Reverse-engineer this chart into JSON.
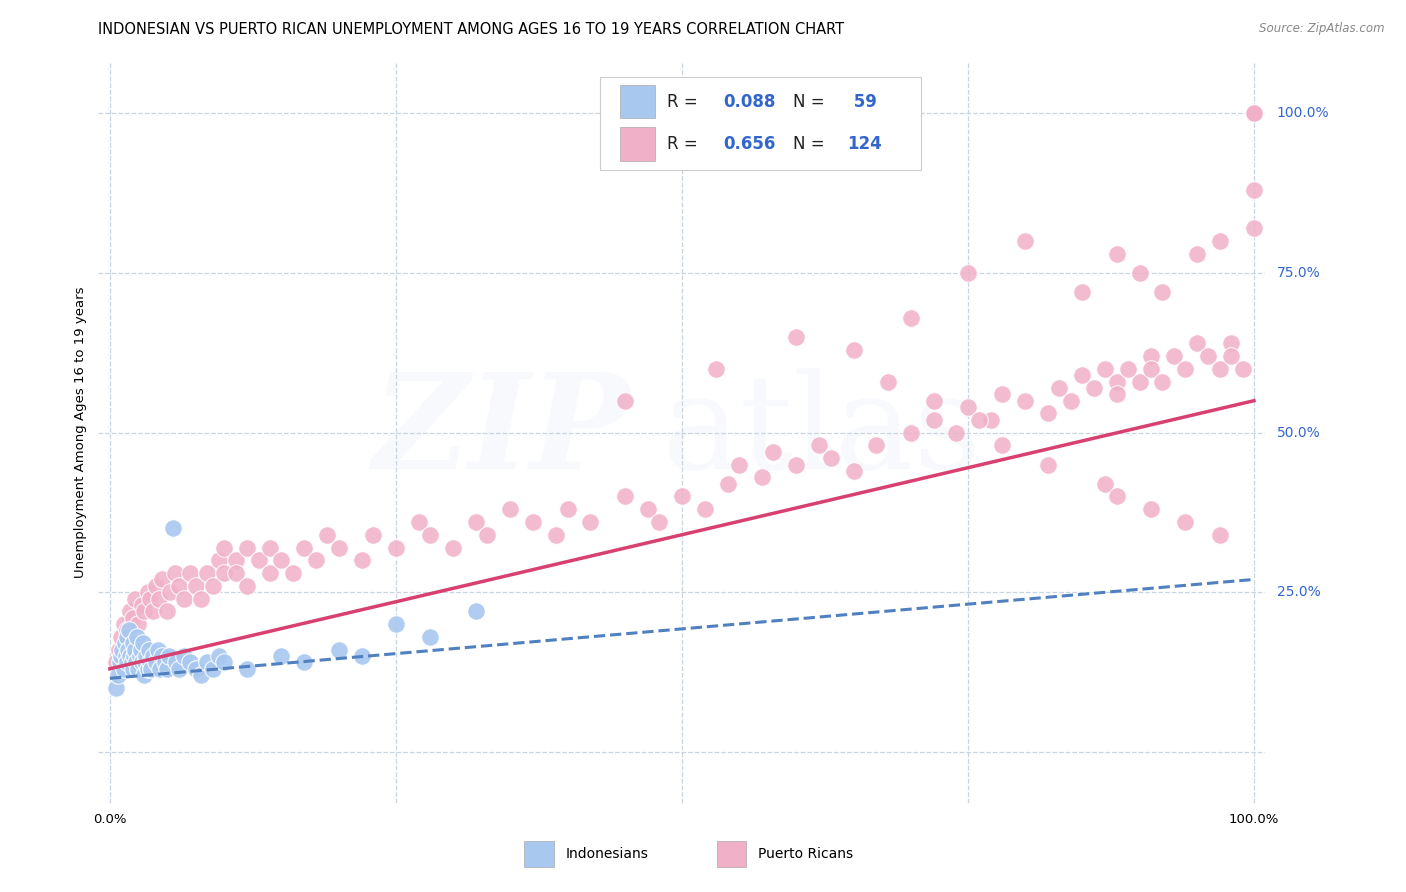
{
  "title": "INDONESIAN VS PUERTO RICAN UNEMPLOYMENT AMONG AGES 16 TO 19 YEARS CORRELATION CHART",
  "source": "Source: ZipAtlas.com",
  "ylabel": "Unemployment Among Ages 16 to 19 years",
  "xlim": [
    -0.01,
    1.01
  ],
  "ylim": [
    -0.08,
    1.08
  ],
  "background_color": "#ffffff",
  "indonesian_color": "#a8c8f0",
  "puerto_rican_color": "#f0b0c8",
  "indonesian_line_color": "#5080c0",
  "puerto_rican_line_color": "#d84070",
  "indonesian_trend": [
    0.0,
    1.0,
    0.115,
    0.27
  ],
  "puerto_rican_trend": [
    0.0,
    1.0,
    0.13,
    0.55
  ],
  "grid_color": "#c8d4e0",
  "tick_color_blue": "#3366cc",
  "title_fontsize": 10.5,
  "axis_label_fontsize": 9.5,
  "tick_fontsize": 9.5,
  "legend_fontsize": 12,
  "watermark_zip_color": "#c8d8e8",
  "watermark_atlas_color": "#c8d8e8",
  "indo_x": [
    0.005,
    0.007,
    0.009,
    0.01,
    0.011,
    0.012,
    0.013,
    0.014,
    0.015,
    0.015,
    0.016,
    0.017,
    0.018,
    0.019,
    0.02,
    0.02,
    0.021,
    0.022,
    0.023,
    0.024,
    0.025,
    0.026,
    0.027,
    0.028,
    0.029,
    0.03,
    0.031,
    0.032,
    0.033,
    0.034,
    0.035,
    0.036,
    0.038,
    0.04,
    0.042,
    0.044,
    0.046,
    0.048,
    0.05,
    0.052,
    0.055,
    0.058,
    0.06,
    0.065,
    0.07,
    0.075,
    0.08,
    0.085,
    0.09,
    0.095,
    0.1,
    0.12,
    0.15,
    0.17,
    0.2,
    0.22,
    0.25,
    0.28,
    0.32
  ],
  "indo_y": [
    0.1,
    0.12,
    0.14,
    0.15,
    0.16,
    0.13,
    0.17,
    0.15,
    0.18,
    0.14,
    0.16,
    0.19,
    0.15,
    0.14,
    0.13,
    0.17,
    0.15,
    0.16,
    0.14,
    0.18,
    0.13,
    0.15,
    0.16,
    0.14,
    0.17,
    0.12,
    0.14,
    0.15,
    0.13,
    0.16,
    0.14,
    0.13,
    0.15,
    0.14,
    0.16,
    0.13,
    0.15,
    0.14,
    0.13,
    0.15,
    0.35,
    0.14,
    0.13,
    0.15,
    0.14,
    0.13,
    0.12,
    0.14,
    0.13,
    0.15,
    0.14,
    0.13,
    0.15,
    0.14,
    0.16,
    0.15,
    0.2,
    0.18,
    0.22
  ],
  "pr_x": [
    0.005,
    0.008,
    0.01,
    0.012,
    0.015,
    0.018,
    0.02,
    0.022,
    0.025,
    0.028,
    0.03,
    0.033,
    0.035,
    0.038,
    0.04,
    0.043,
    0.046,
    0.05,
    0.053,
    0.057,
    0.06,
    0.065,
    0.07,
    0.075,
    0.08,
    0.085,
    0.09,
    0.095,
    0.1,
    0.1,
    0.11,
    0.11,
    0.12,
    0.12,
    0.13,
    0.14,
    0.14,
    0.15,
    0.16,
    0.17,
    0.18,
    0.19,
    0.2,
    0.22,
    0.23,
    0.25,
    0.27,
    0.28,
    0.3,
    0.32,
    0.33,
    0.35,
    0.37,
    0.39,
    0.4,
    0.42,
    0.45,
    0.47,
    0.48,
    0.5,
    0.52,
    0.54,
    0.55,
    0.57,
    0.58,
    0.6,
    0.62,
    0.63,
    0.65,
    0.67,
    0.7,
    0.72,
    0.74,
    0.75,
    0.77,
    0.78,
    0.8,
    0.82,
    0.83,
    0.84,
    0.85,
    0.86,
    0.87,
    0.88,
    0.88,
    0.89,
    0.9,
    0.91,
    0.91,
    0.92,
    0.93,
    0.94,
    0.95,
    0.96,
    0.97,
    0.98,
    0.98,
    0.99,
    1.0,
    1.0,
    1.0,
    1.0,
    0.53,
    0.6,
    0.65,
    0.45,
    0.7,
    0.75,
    0.8,
    0.85,
    0.88,
    0.9,
    0.92,
    0.95,
    0.97,
    1.0,
    0.68,
    0.72,
    0.76,
    0.78,
    0.82,
    0.87,
    0.88,
    0.91,
    0.94,
    0.97
  ],
  "pr_y": [
    0.14,
    0.16,
    0.18,
    0.2,
    0.19,
    0.22,
    0.21,
    0.24,
    0.2,
    0.23,
    0.22,
    0.25,
    0.24,
    0.22,
    0.26,
    0.24,
    0.27,
    0.22,
    0.25,
    0.28,
    0.26,
    0.24,
    0.28,
    0.26,
    0.24,
    0.28,
    0.26,
    0.3,
    0.28,
    0.32,
    0.3,
    0.28,
    0.32,
    0.26,
    0.3,
    0.28,
    0.32,
    0.3,
    0.28,
    0.32,
    0.3,
    0.34,
    0.32,
    0.3,
    0.34,
    0.32,
    0.36,
    0.34,
    0.32,
    0.36,
    0.34,
    0.38,
    0.36,
    0.34,
    0.38,
    0.36,
    0.4,
    0.38,
    0.36,
    0.4,
    0.38,
    0.42,
    0.45,
    0.43,
    0.47,
    0.45,
    0.48,
    0.46,
    0.44,
    0.48,
    0.5,
    0.52,
    0.5,
    0.54,
    0.52,
    0.56,
    0.55,
    0.53,
    0.57,
    0.55,
    0.59,
    0.57,
    0.6,
    0.58,
    0.56,
    0.6,
    0.58,
    0.62,
    0.6,
    0.58,
    0.62,
    0.6,
    0.64,
    0.62,
    0.6,
    0.64,
    0.62,
    0.6,
    1.0,
    1.0,
    1.0,
    0.88,
    0.6,
    0.65,
    0.63,
    0.55,
    0.68,
    0.75,
    0.8,
    0.72,
    0.78,
    0.75,
    0.72,
    0.78,
    0.8,
    0.82,
    0.58,
    0.55,
    0.52,
    0.48,
    0.45,
    0.42,
    0.4,
    0.38,
    0.36,
    0.34
  ]
}
